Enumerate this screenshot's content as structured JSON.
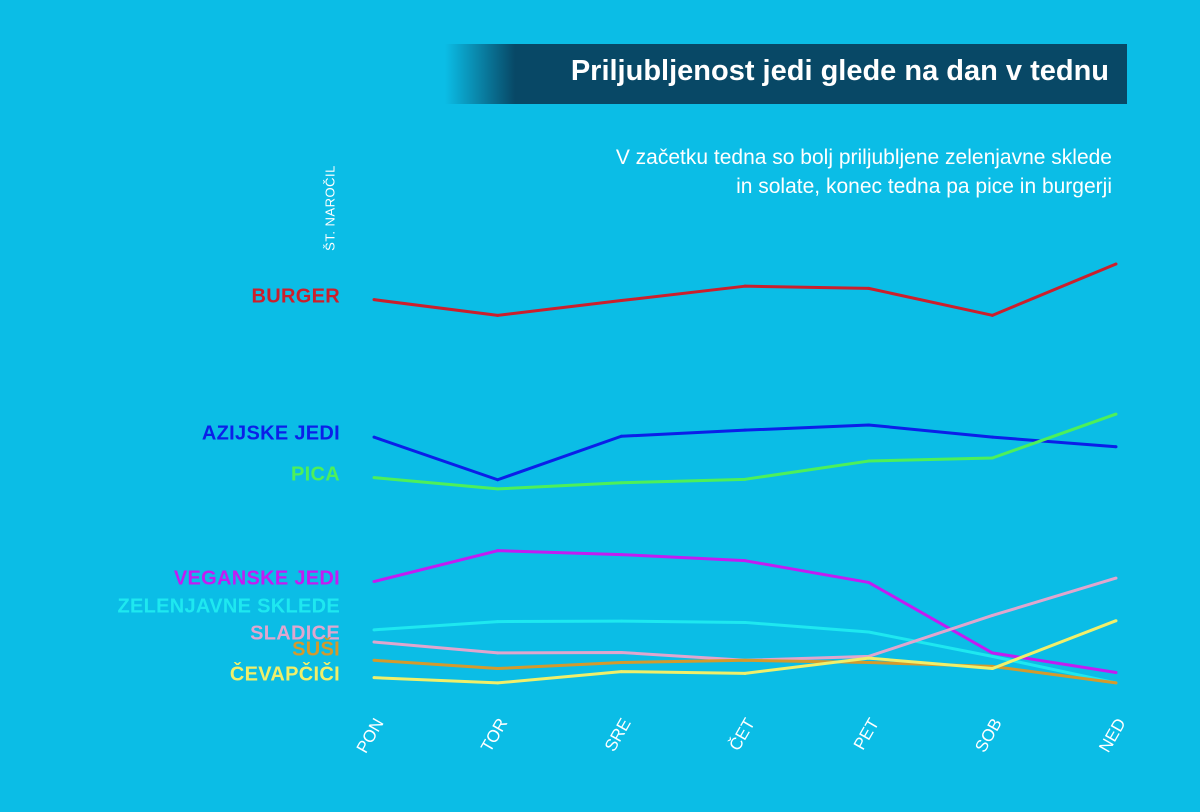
{
  "title": "Priljubljenost jedi glede na dan v tednu",
  "subtitle_lines": [
    "V začetku tedna so bolj priljubljene zelenjavne sklede",
    "in solate, konec tedna pa pice in burgerji"
  ],
  "chart_data": {
    "type": "line",
    "title": "Priljubljenost jedi glede na dan v tednu",
    "ylabel": "ŠT. NAROČIL",
    "xlabel": "",
    "categories": [
      "PON",
      "TOR",
      "SRE",
      "ČET",
      "PET",
      "SOB",
      "NED"
    ],
    "grid": false,
    "legend": "left, labels beside first point",
    "ylim": [
      0,
      100
    ],
    "series": [
      {
        "name": "BURGER",
        "color": "#cc1f2c",
        "values": [
          91.8,
          88.2,
          91.6,
          94.9,
          94.4,
          88.2,
          100
        ]
      },
      {
        "name": "AZIJSKE JEDI",
        "color": "#0b1fe8",
        "values": [
          60.2,
          50.4,
          60.4,
          61.8,
          63.0,
          60.2,
          58.0
        ]
      },
      {
        "name": "PICA",
        "color": "#4df05a",
        "values": [
          50.9,
          48.3,
          49.7,
          50.5,
          54.7,
          55.4,
          65.5
        ]
      },
      {
        "name": "VEGANSKE JEDI",
        "color": "#c21cf2",
        "values": [
          27.0,
          34.1,
          33.2,
          31.8,
          26.8,
          10.6,
          6.1
        ]
      },
      {
        "name": "ZELENJAVNE SKLEDE",
        "color": "#1ee8f0",
        "values": [
          15.9,
          17.8,
          17.9,
          17.6,
          15.4,
          9.8,
          3.7
        ]
      },
      {
        "name": "SLADICE",
        "color": "#e0a6ce",
        "values": [
          13.1,
          10.6,
          10.7,
          8.9,
          9.8,
          19.2,
          27.8
        ]
      },
      {
        "name": "SUŠI",
        "color": "#d49a2c",
        "values": [
          8.9,
          7.0,
          8.4,
          8.9,
          8.4,
          7.5,
          3.7
        ]
      },
      {
        "name": "ČEVAPČIČI",
        "color": "#f0ef6a",
        "values": [
          4.9,
          3.7,
          6.3,
          5.9,
          9.4,
          7.0,
          18.0
        ]
      }
    ]
  }
}
